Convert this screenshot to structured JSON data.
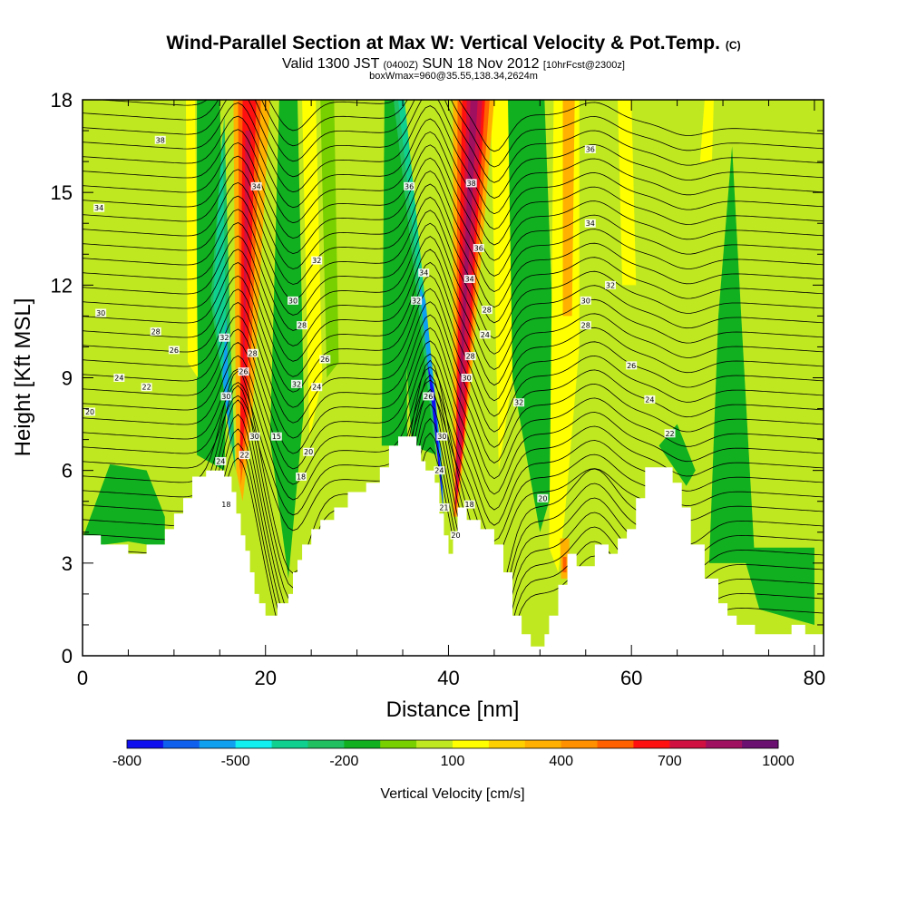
{
  "chart_data": {
    "type": "heatmap",
    "title": "Wind-Parallel Section at Max W: Vertical Velocity & Pot.Temp.",
    "title_unit": "(C)",
    "subtitle_a": "Valid 1300 JST",
    "subtitle_b": "(0400Z)",
    "subtitle_c": "SUN 18 Nov 2012",
    "subtitle_d": "[10hrFcst@2300z]",
    "subtitle2": "boxWmax=960@35.55,138.34,2624m",
    "xlabel": "Distance [nm]",
    "ylabel": "Height [Kft MSL]",
    "xlim": [
      0,
      81
    ],
    "ylim": [
      0,
      18
    ],
    "xticks": [
      "0",
      "20",
      "40",
      "60",
      "80"
    ],
    "yticks": [
      "0",
      "3",
      "6",
      "9",
      "12",
      "15",
      "18"
    ],
    "colorbar": {
      "label": "Vertical Velocity [cm/s]",
      "tick_labels": [
        "-800",
        "-500",
        "-200",
        "100",
        "400",
        "700",
        "1000"
      ],
      "tick_values": [
        -800,
        -500,
        -200,
        100,
        400,
        700,
        1000
      ],
      "colors": [
        "#1010ee",
        "#1060ee",
        "#10a0f0",
        "#10f0f0",
        "#10d090",
        "#20c060",
        "#10b020",
        "#78d000",
        "#c0e820",
        "#ffff00",
        "#ffd000",
        "#ffb000",
        "#ff9000",
        "#ff6000",
        "#ff1010",
        "#d01040",
        "#a01060",
        "#6a1070"
      ]
    },
    "contour_labels": [
      {
        "text": "38",
        "x": 8.5,
        "y": 16.7
      },
      {
        "text": "34",
        "x": 1.8,
        "y": 14.5
      },
      {
        "text": "30",
        "x": 2.0,
        "y": 11.1
      },
      {
        "text": "28",
        "x": 8.0,
        "y": 10.5
      },
      {
        "text": "26",
        "x": 10.0,
        "y": 9.9
      },
      {
        "text": "24",
        "x": 4.0,
        "y": 9.0
      },
      {
        "text": "22",
        "x": 7.0,
        "y": 8.7
      },
      {
        "text": "20",
        "x": 0.8,
        "y": 7.9
      },
      {
        "text": "34",
        "x": 19.0,
        "y": 15.2
      },
      {
        "text": "32",
        "x": 15.5,
        "y": 10.3
      },
      {
        "text": "26",
        "x": 17.6,
        "y": 9.2
      },
      {
        "text": "28",
        "x": 18.6,
        "y": 9.8
      },
      {
        "text": "30",
        "x": 15.7,
        "y": 8.4
      },
      {
        "text": "30",
        "x": 18.8,
        "y": 7.1
      },
      {
        "text": "24",
        "x": 15.1,
        "y": 6.3
      },
      {
        "text": "22",
        "x": 17.7,
        "y": 6.5
      },
      {
        "text": "18",
        "x": 15.7,
        "y": 4.9
      },
      {
        "text": "32",
        "x": 25.6,
        "y": 12.8
      },
      {
        "text": "30",
        "x": 23.0,
        "y": 11.5
      },
      {
        "text": "28",
        "x": 24.0,
        "y": 10.7
      },
      {
        "text": "26",
        "x": 26.5,
        "y": 9.6
      },
      {
        "text": "24",
        "x": 25.6,
        "y": 8.7
      },
      {
        "text": "32",
        "x": 23.4,
        "y": 8.8
      },
      {
        "text": "15",
        "x": 21.2,
        "y": 7.1
      },
      {
        "text": "20",
        "x": 24.7,
        "y": 6.6
      },
      {
        "text": "18",
        "x": 23.9,
        "y": 5.8
      },
      {
        "text": "36",
        "x": 35.7,
        "y": 15.2
      },
      {
        "text": "34",
        "x": 37.3,
        "y": 12.4
      },
      {
        "text": "32",
        "x": 36.5,
        "y": 11.5
      },
      {
        "text": "26",
        "x": 37.8,
        "y": 8.4
      },
      {
        "text": "30",
        "x": 39.3,
        "y": 7.1
      },
      {
        "text": "24",
        "x": 39.0,
        "y": 6.0
      },
      {
        "text": "21",
        "x": 39.5,
        "y": 4.8
      },
      {
        "text": "20",
        "x": 40.8,
        "y": 3.9
      },
      {
        "text": "38",
        "x": 42.5,
        "y": 15.3
      },
      {
        "text": "36",
        "x": 43.3,
        "y": 13.2
      },
      {
        "text": "34",
        "x": 42.3,
        "y": 12.2
      },
      {
        "text": "28",
        "x": 44.2,
        "y": 11.2
      },
      {
        "text": "24",
        "x": 44.0,
        "y": 10.4
      },
      {
        "text": "28",
        "x": 42.4,
        "y": 9.7
      },
      {
        "text": "30",
        "x": 42.0,
        "y": 9.0
      },
      {
        "text": "18",
        "x": 42.3,
        "y": 4.9
      },
      {
        "text": "32",
        "x": 47.7,
        "y": 8.2
      },
      {
        "text": "20",
        "x": 50.3,
        "y": 5.1
      },
      {
        "text": "36",
        "x": 55.5,
        "y": 16.4
      },
      {
        "text": "34",
        "x": 55.5,
        "y": 14.0
      },
      {
        "text": "32",
        "x": 57.7,
        "y": 12.0
      },
      {
        "text": "30",
        "x": 55.0,
        "y": 11.5
      },
      {
        "text": "28",
        "x": 55.0,
        "y": 10.7
      },
      {
        "text": "26",
        "x": 60.0,
        "y": 9.4
      },
      {
        "text": "24",
        "x": 62.0,
        "y": 8.3
      },
      {
        "text": "22",
        "x": 64.2,
        "y": 7.2
      }
    ]
  }
}
